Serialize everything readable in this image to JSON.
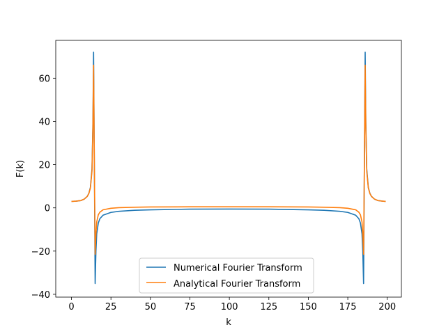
{
  "chart_data": {
    "type": "line",
    "title": "",
    "xlabel": "k",
    "ylabel": "F(k)",
    "xlim": [
      -9.95,
      208.95
    ],
    "ylim": [
      -41.3,
      77.5
    ],
    "xticks": [
      0,
      25,
      50,
      75,
      100,
      125,
      150,
      175,
      200
    ],
    "xtick_labels": [
      "0",
      "25",
      "50",
      "75",
      "100",
      "125",
      "150",
      "175",
      "200"
    ],
    "yticks": [
      -40,
      -20,
      0,
      20,
      40,
      60
    ],
    "ytick_labels": [
      "−40",
      "−20",
      "0",
      "20",
      "40",
      "60"
    ],
    "grid": false,
    "legend_position": "lower center",
    "series": [
      {
        "name": "Numerical Fourier Transform",
        "color": "#1f77b4",
        "points": [
          [
            0,
            3.0
          ],
          [
            3,
            3.1
          ],
          [
            6,
            3.4
          ],
          [
            8,
            4.0
          ],
          [
            10,
            5.3
          ],
          [
            11,
            6.7
          ],
          [
            12,
            9.5
          ],
          [
            13,
            18.0
          ],
          [
            13.6,
            40.0
          ],
          [
            14,
            72.0
          ],
          [
            14.5,
            20.0
          ],
          [
            15,
            -35.0
          ],
          [
            15.5,
            -20.0
          ],
          [
            16,
            -12.0
          ],
          [
            17,
            -7.0
          ],
          [
            18,
            -5.0
          ],
          [
            20,
            -3.4
          ],
          [
            25,
            -2.1
          ],
          [
            30,
            -1.6
          ],
          [
            40,
            -1.1
          ],
          [
            50,
            -0.9
          ],
          [
            75,
            -0.6
          ],
          [
            100,
            -0.55
          ],
          [
            125,
            -0.6
          ],
          [
            150,
            -0.9
          ],
          [
            160,
            -1.1
          ],
          [
            170,
            -1.6
          ],
          [
            175,
            -2.1
          ],
          [
            180,
            -3.4
          ],
          [
            182,
            -5.0
          ],
          [
            183,
            -7.0
          ],
          [
            184,
            -12.0
          ],
          [
            184.5,
            -20.0
          ],
          [
            185,
            -35.0
          ],
          [
            185.5,
            20.0
          ],
          [
            186,
            72.0
          ],
          [
            186.4,
            40.0
          ],
          [
            187,
            18.0
          ],
          [
            188,
            9.5
          ],
          [
            189,
            6.7
          ],
          [
            190,
            5.3
          ],
          [
            192,
            4.0
          ],
          [
            194,
            3.4
          ],
          [
            197,
            3.1
          ],
          [
            199,
            3.0
          ]
        ]
      },
      {
        "name": "Analytical Fourier Transform",
        "color": "#ff7f0e",
        "points": [
          [
            0,
            3.0
          ],
          [
            3,
            3.1
          ],
          [
            6,
            3.4
          ],
          [
            8,
            4.0
          ],
          [
            10,
            5.3
          ],
          [
            11,
            6.6
          ],
          [
            12,
            9.2
          ],
          [
            13,
            17.0
          ],
          [
            13.6,
            38.0
          ],
          [
            14,
            66.0
          ],
          [
            14.5,
            20.0
          ],
          [
            15,
            -21.5
          ],
          [
            15.5,
            -12.0
          ],
          [
            16,
            -6.5
          ],
          [
            17,
            -3.2
          ],
          [
            18,
            -2.0
          ],
          [
            20,
            -0.9
          ],
          [
            25,
            -0.2
          ],
          [
            30,
            0.1
          ],
          [
            40,
            0.3
          ],
          [
            50,
            0.4
          ],
          [
            75,
            0.5
          ],
          [
            100,
            0.5
          ],
          [
            125,
            0.5
          ],
          [
            150,
            0.4
          ],
          [
            160,
            0.3
          ],
          [
            170,
            0.1
          ],
          [
            175,
            -0.2
          ],
          [
            180,
            -0.9
          ],
          [
            182,
            -2.0
          ],
          [
            183,
            -3.2
          ],
          [
            184,
            -6.5
          ],
          [
            184.5,
            -12.0
          ],
          [
            185,
            -21.5
          ],
          [
            185.5,
            20.0
          ],
          [
            186,
            66.0
          ],
          [
            186.4,
            38.0
          ],
          [
            187,
            17.0
          ],
          [
            188,
            9.2
          ],
          [
            189,
            6.6
          ],
          [
            190,
            5.3
          ],
          [
            192,
            4.0
          ],
          [
            194,
            3.4
          ],
          [
            197,
            3.1
          ],
          [
            199,
            3.0
          ]
        ]
      }
    ]
  }
}
